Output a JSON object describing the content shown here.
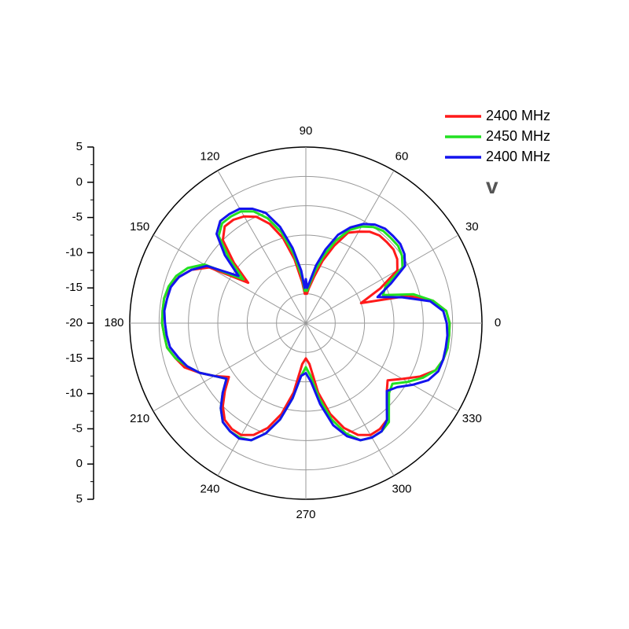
{
  "chart_data": {
    "type": "polar-line",
    "panel_label": "v",
    "radial_axis": {
      "min": -25,
      "max": 5,
      "major_ticks": [
        -25,
        -20,
        -15,
        -10,
        -5,
        0,
        5
      ],
      "tick_labels": [
        "5",
        "0",
        "-5",
        "-10",
        "-15",
        "-20",
        "-15",
        "-10",
        "-5",
        "0",
        "5"
      ]
    },
    "angular_axis": {
      "unit": "deg",
      "step": 30,
      "tick_labels": [
        "0",
        "30",
        "60",
        "90",
        "120",
        "150",
        "180",
        "210",
        "240",
        "270",
        "300",
        "330"
      ]
    },
    "grid": true,
    "legend_position": "top-right",
    "series": [
      {
        "name": "2400 MHz",
        "color": "#ff1a1a",
        "theta": [
          0,
          5,
          10,
          15,
          20,
          25,
          30,
          35,
          40,
          45,
          50,
          55,
          60,
          65,
          70,
          75,
          80,
          85,
          88,
          90,
          92,
          95,
          100,
          105,
          110,
          115,
          120,
          125,
          130,
          135,
          140,
          145,
          150,
          155,
          160,
          165,
          170,
          175,
          180,
          185,
          190,
          195,
          200,
          205,
          210,
          215,
          220,
          225,
          230,
          235,
          240,
          245,
          250,
          255,
          260,
          265,
          270,
          275,
          280,
          285,
          290,
          295,
          300,
          305,
          310,
          315,
          320,
          325,
          330,
          335,
          340,
          345,
          350,
          355
        ],
        "r": [
          -0.5,
          -1,
          -3,
          -7,
          -15,
          -11,
          -7,
          -6,
          -5.5,
          -5.5,
          -5.5,
          -6,
          -7,
          -8,
          -11,
          -14,
          -17,
          -19,
          -20,
          -18,
          -20,
          -18,
          -14,
          -10,
          -7,
          -5,
          -4,
          -3.5,
          -3.5,
          -5,
          -9,
          -13,
          -6,
          -3.5,
          -2,
          -1,
          -0.5,
          -0.5,
          -0.5,
          -0.8,
          -1,
          -2,
          -3,
          -5,
          -7,
          -9,
          -7,
          -5,
          -3.5,
          -3,
          -3,
          -4,
          -6,
          -9,
          -13,
          -18,
          -19,
          -18,
          -13,
          -9,
          -6,
          -4,
          -3,
          -3,
          -3.5,
          -5,
          -7,
          -8,
          -6,
          -3.5,
          -1.5,
          -0.8,
          -0.5,
          -0.5
        ]
      },
      {
        "name": "2450 MHz",
        "color": "#22e022",
        "theta": [
          0,
          5,
          10,
          15,
          20,
          25,
          30,
          35,
          40,
          45,
          50,
          55,
          60,
          65,
          70,
          75,
          80,
          85,
          88,
          90,
          92,
          95,
          100,
          105,
          110,
          115,
          120,
          125,
          130,
          135,
          140,
          145,
          150,
          155,
          160,
          165,
          170,
          175,
          180,
          185,
          190,
          195,
          200,
          205,
          210,
          215,
          220,
          225,
          230,
          235,
          240,
          245,
          250,
          255,
          260,
          265,
          270,
          275,
          280,
          285,
          290,
          295,
          300,
          305,
          310,
          315,
          320,
          325,
          330,
          335,
          340,
          345,
          350,
          355
        ],
        "r": [
          -0.5,
          -1,
          -3,
          -6,
          -11,
          -10,
          -6,
          -5,
          -4.5,
          -4.5,
          -4.5,
          -5,
          -6,
          -7.5,
          -10,
          -13,
          -16,
          -18.5,
          -19.5,
          -18,
          -19.5,
          -17,
          -13,
          -9,
          -6,
          -4,
          -3,
          -2.8,
          -2.8,
          -4,
          -8,
          -12,
          -5,
          -2.8,
          -1.5,
          -0.8,
          -0.5,
          -0.5,
          -0.5,
          -0.8,
          -1,
          -2,
          -3.5,
          -5,
          -7,
          -8.5,
          -6.5,
          -4.5,
          -3,
          -2.5,
          -2.5,
          -3,
          -5,
          -8,
          -12,
          -16,
          -17.5,
          -16,
          -12,
          -8,
          -5,
          -3,
          -2.5,
          -2.5,
          -3,
          -5,
          -6.5,
          -7,
          -5,
          -3,
          -1.5,
          -0.8,
          -0.5,
          -0.5
        ]
      },
      {
        "name": "2400 MHz",
        "color": "#1414ee",
        "theta": [
          0,
          5,
          10,
          15,
          20,
          25,
          30,
          35,
          40,
          45,
          50,
          55,
          60,
          65,
          70,
          75,
          80,
          85,
          88,
          90,
          92,
          95,
          100,
          105,
          110,
          115,
          120,
          125,
          130,
          135,
          140,
          145,
          150,
          155,
          160,
          165,
          170,
          175,
          180,
          185,
          190,
          195,
          200,
          205,
          210,
          215,
          220,
          225,
          230,
          235,
          240,
          245,
          250,
          255,
          260,
          265,
          270,
          275,
          280,
          285,
          290,
          295,
          300,
          305,
          310,
          315,
          320,
          325,
          330,
          335,
          340,
          345,
          350,
          355
        ],
        "r": [
          -1,
          -1.5,
          -3.5,
          -8,
          -12,
          -9,
          -5.5,
          -4.5,
          -4,
          -4,
          -4,
          -4.5,
          -5.5,
          -7,
          -9,
          -12,
          -15,
          -18,
          -19,
          -17.5,
          -19,
          -16,
          -12,
          -8,
          -5,
          -3.5,
          -2.5,
          -2.3,
          -2.3,
          -3.5,
          -7,
          -11,
          -5.5,
          -3.5,
          -2,
          -1.2,
          -1,
          -0.8,
          -1,
          -1.2,
          -1.5,
          -2.5,
          -3.5,
          -5,
          -7,
          -8.5,
          -6.5,
          -4.5,
          -3,
          -2.5,
          -2.3,
          -3,
          -5,
          -8,
          -12,
          -16,
          -16.5,
          -15,
          -11,
          -7,
          -4.5,
          -3,
          -2.5,
          -2.5,
          -3.5,
          -5.5,
          -7,
          -6,
          -4,
          -2,
          -1,
          -0.8,
          -0.8,
          -0.8
        ]
      }
    ]
  }
}
